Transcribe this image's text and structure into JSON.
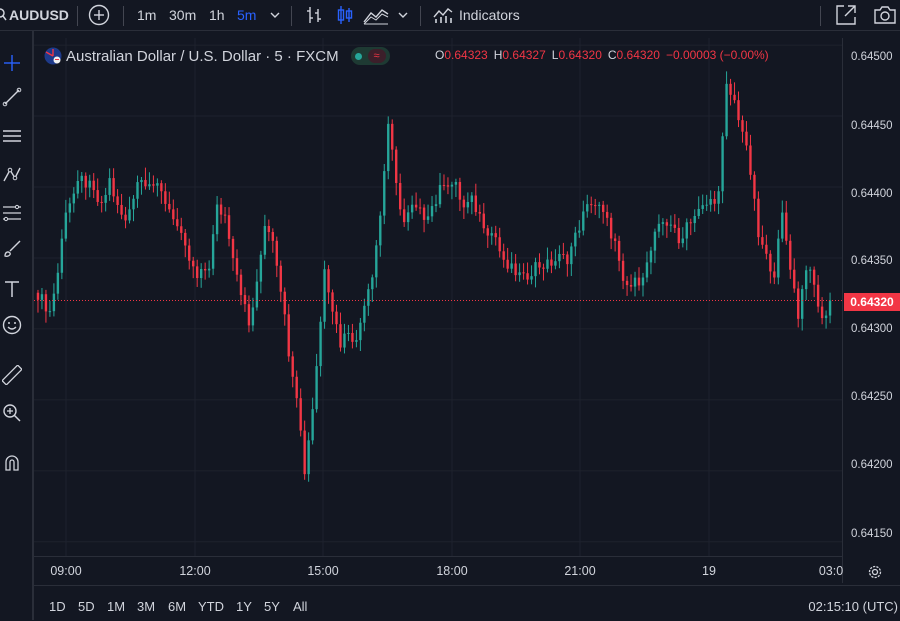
{
  "toolbar": {
    "symbol": "AUDUSD",
    "intervals": [
      "1m",
      "30m",
      "1h",
      "5m"
    ],
    "active_interval": "5m",
    "indicators_label": "Indicators"
  },
  "legend": {
    "title": "Australian Dollar / U.S. Dollar · 5 · FXCM",
    "ohlc": {
      "o_key": "O",
      "o": "0.64323",
      "h_key": "H",
      "h": "0.64327",
      "l_key": "L",
      "l": "0.64320",
      "c_key": "C",
      "c": "0.64320",
      "change": "−0.00003 (−0.00%)"
    }
  },
  "price_axis": {
    "labels": [
      "0.64500",
      "0.64450",
      "0.64400",
      "0.64350",
      "0.64300",
      "0.64250",
      "0.64200",
      "0.64150"
    ],
    "current_price": "0.64320"
  },
  "time_axis": {
    "labels": [
      "09:00",
      "12:00",
      "15:00",
      "18:00",
      "21:00",
      "19",
      "03:0"
    ]
  },
  "bottom": {
    "ranges": [
      "1D",
      "5D",
      "1M",
      "3M",
      "6M",
      "YTD",
      "1Y",
      "5Y",
      "All"
    ],
    "clock": "02:15:10 (UTC)"
  },
  "colors": {
    "up": "#26a69a",
    "down": "#f23645",
    "background": "#131722",
    "active_interval": "#2962ff"
  },
  "chart_data": {
    "type": "candlestick",
    "ylim": [
      0.6414,
      0.64505
    ],
    "y_ticks": [
      0.645,
      0.6445,
      0.644,
      0.6435,
      0.643,
      0.6425,
      0.642,
      0.6415
    ],
    "x_tick_labels": [
      "09:00",
      "12:00",
      "15:00",
      "18:00",
      "21:00",
      "19",
      "03:0"
    ],
    "last_price": 0.6432,
    "anchors": [
      [
        0,
        0.64325
      ],
      [
        3,
        0.64312
      ],
      [
        5,
        0.6434
      ],
      [
        7,
        0.64385
      ],
      [
        9,
        0.64395
      ],
      [
        11,
        0.64405
      ],
      [
        13,
        0.644
      ],
      [
        16,
        0.64385
      ],
      [
        18,
        0.64405
      ],
      [
        20,
        0.64385
      ],
      [
        22,
        0.64375
      ],
      [
        25,
        0.64405
      ],
      [
        28,
        0.64405
      ],
      [
        31,
        0.64395
      ],
      [
        34,
        0.6438
      ],
      [
        37,
        0.64355
      ],
      [
        40,
        0.64335
      ],
      [
        43,
        0.64345
      ],
      [
        45,
        0.64385
      ],
      [
        47,
        0.6438
      ],
      [
        50,
        0.6434
      ],
      [
        53,
        0.64302
      ],
      [
        55,
        0.6433
      ],
      [
        57,
        0.64375
      ],
      [
        59,
        0.64365
      ],
      [
        61,
        0.6433
      ],
      [
        63,
        0.64285
      ],
      [
        65,
        0.64255
      ],
      [
        67,
        0.642
      ],
      [
        69,
        0.64245
      ],
      [
        71,
        0.64305
      ],
      [
        72,
        0.64345
      ],
      [
        74,
        0.64315
      ],
      [
        76,
        0.6429
      ],
      [
        78,
        0.643
      ],
      [
        80,
        0.6429
      ],
      [
        82,
        0.6432
      ],
      [
        84,
        0.6434
      ],
      [
        86,
        0.6438
      ],
      [
        88,
        0.64445
      ],
      [
        90,
        0.644
      ],
      [
        92,
        0.64375
      ],
      [
        94,
        0.64385
      ],
      [
        97,
        0.6438
      ],
      [
        100,
        0.6439
      ],
      [
        102,
        0.64405
      ],
      [
        105,
        0.644
      ],
      [
        107,
        0.64385
      ],
      [
        109,
        0.6439
      ],
      [
        111,
        0.6438
      ],
      [
        113,
        0.6437
      ],
      [
        115,
        0.64365
      ],
      [
        117,
        0.64345
      ],
      [
        120,
        0.6434
      ],
      [
        122,
        0.64335
      ],
      [
        125,
        0.64345
      ],
      [
        128,
        0.64345
      ],
      [
        131,
        0.6435
      ],
      [
        133,
        0.6435
      ],
      [
        135,
        0.64365
      ],
      [
        137,
        0.6438
      ],
      [
        139,
        0.6439
      ],
      [
        141,
        0.64385
      ],
      [
        143,
        0.64375
      ],
      [
        145,
        0.6436
      ],
      [
        147,
        0.6433
      ],
      [
        149,
        0.6433
      ],
      [
        151,
        0.64335
      ],
      [
        153,
        0.64345
      ],
      [
        155,
        0.64365
      ],
      [
        157,
        0.64375
      ],
      [
        159,
        0.64375
      ],
      [
        161,
        0.6436
      ],
      [
        163,
        0.64375
      ],
      [
        165,
        0.6438
      ],
      [
        167,
        0.64385
      ],
      [
        169,
        0.6439
      ],
      [
        171,
        0.64395
      ],
      [
        173,
        0.6447
      ],
      [
        175,
        0.6446
      ],
      [
        177,
        0.6444
      ],
      [
        179,
        0.6441
      ],
      [
        181,
        0.64365
      ],
      [
        183,
        0.6435
      ],
      [
        185,
        0.6434
      ],
      [
        187,
        0.6438
      ],
      [
        189,
        0.64345
      ],
      [
        191,
        0.6431
      ],
      [
        193,
        0.64345
      ],
      [
        195,
        0.6433
      ],
      [
        197,
        0.64305
      ],
      [
        199,
        0.6432
      ]
    ]
  }
}
